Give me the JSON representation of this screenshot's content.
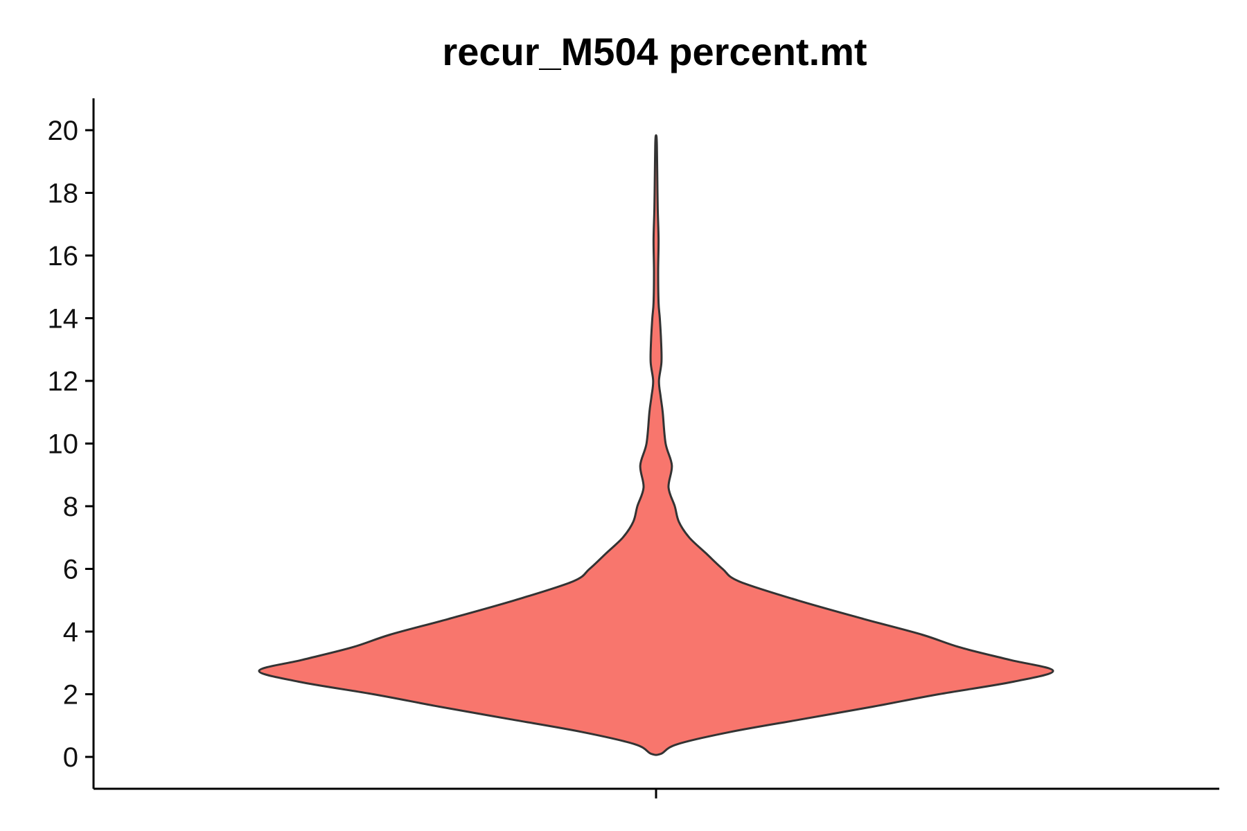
{
  "chart_data": {
    "type": "violin",
    "title": "recur_M504 percent.mt",
    "xlabel": "",
    "ylabel": "",
    "ylim": [
      -1,
      21
    ],
    "yticks": [
      0,
      2,
      4,
      6,
      8,
      10,
      12,
      14,
      16,
      18,
      20
    ],
    "grid": false,
    "legend": "none",
    "fill_color": "#F8766D",
    "outline_color": "#333333",
    "series": [
      {
        "category_position": 1,
        "min": 0.1,
        "max": 19.8,
        "density_profile": [
          {
            "y": 0.1,
            "half_width": 0.012
          },
          {
            "y": 0.4,
            "half_width": 0.05
          },
          {
            "y": 0.8,
            "half_width": 0.18
          },
          {
            "y": 1.2,
            "half_width": 0.35
          },
          {
            "y": 1.6,
            "half_width": 0.52
          },
          {
            "y": 2.0,
            "half_width": 0.68
          },
          {
            "y": 2.4,
            "half_width": 0.86
          },
          {
            "y": 2.75,
            "half_width": 0.955
          },
          {
            "y": 3.1,
            "half_width": 0.85
          },
          {
            "y": 3.5,
            "half_width": 0.73
          },
          {
            "y": 3.9,
            "half_width": 0.64
          },
          {
            "y": 4.4,
            "half_width": 0.5
          },
          {
            "y": 5.0,
            "half_width": 0.34
          },
          {
            "y": 5.6,
            "half_width": 0.2
          },
          {
            "y": 6.0,
            "half_width": 0.16
          },
          {
            "y": 6.5,
            "half_width": 0.12
          },
          {
            "y": 7.0,
            "half_width": 0.08
          },
          {
            "y": 7.5,
            "half_width": 0.055
          },
          {
            "y": 8.0,
            "half_width": 0.045
          },
          {
            "y": 8.6,
            "half_width": 0.03
          },
          {
            "y": 9.3,
            "half_width": 0.038
          },
          {
            "y": 10.0,
            "half_width": 0.023
          },
          {
            "y": 11.0,
            "half_width": 0.016
          },
          {
            "y": 11.5,
            "half_width": 0.011
          },
          {
            "y": 12.0,
            "half_width": 0.007
          },
          {
            "y": 12.6,
            "half_width": 0.013
          },
          {
            "y": 13.3,
            "half_width": 0.012
          },
          {
            "y": 14.0,
            "half_width": 0.009
          },
          {
            "y": 14.5,
            "half_width": 0.006
          },
          {
            "y": 15.5,
            "half_width": 0.005
          },
          {
            "y": 16.5,
            "half_width": 0.006
          },
          {
            "y": 17.5,
            "half_width": 0.004
          },
          {
            "y": 18.5,
            "half_width": 0.003
          },
          {
            "y": 19.5,
            "half_width": 0.002
          },
          {
            "y": 19.8,
            "half_width": 0.001
          }
        ]
      }
    ]
  }
}
